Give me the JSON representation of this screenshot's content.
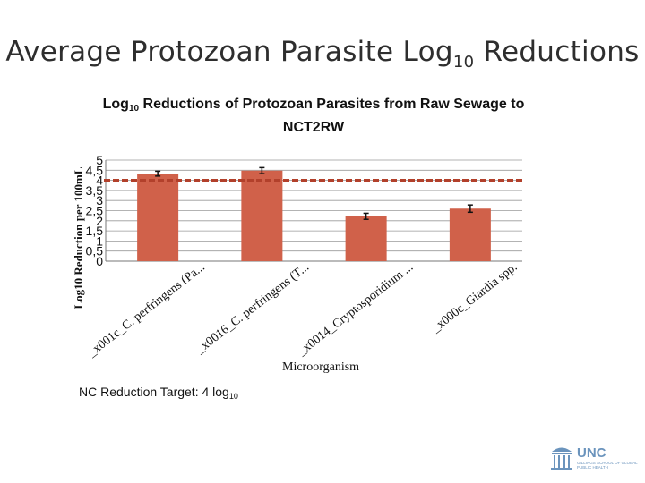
{
  "slide": {
    "title_main": "Average Protozoan Parasite Log",
    "title_sub": "10",
    "title_tail": " Reductions"
  },
  "chart_data": {
    "type": "bar",
    "title_main": "Log",
    "title_sub": "10",
    "title_tail": " Reductions of Protozoan Parasites from Raw Sewage to NCT2RW",
    "ylabel": "Log10 Reduction per 100mL",
    "xlabel": "Microorganism",
    "ylim": [
      0,
      5
    ],
    "y_tick_labels": [
      "0",
      "0,5",
      "1",
      "1,5",
      "2",
      "2,5",
      "3",
      "3,5",
      "4",
      "4,5",
      "5"
    ],
    "categories": [
      "_x001c_C. perfringens (Pa...",
      "_x0016_C. perfringens (T...",
      "_x0014_Cryptosporidium ...",
      "_x000c_Giardia spp."
    ],
    "values": [
      4.33,
      4.48,
      2.22,
      2.6
    ],
    "errors": [
      0.12,
      0.15,
      0.15,
      0.18
    ],
    "target_value": 4,
    "bar_color": "#d0614a",
    "target_color": "#b2402b",
    "grid": true,
    "legend": "none"
  },
  "target_note": {
    "main": "NC Reduction Target: 4 log",
    "sub": "10"
  },
  "logo": {
    "name": "UNC",
    "subtitle": "GILLINGS SCHOOL OF GLOBAL PUBLIC HEALTH",
    "color": "#6b94bd"
  }
}
